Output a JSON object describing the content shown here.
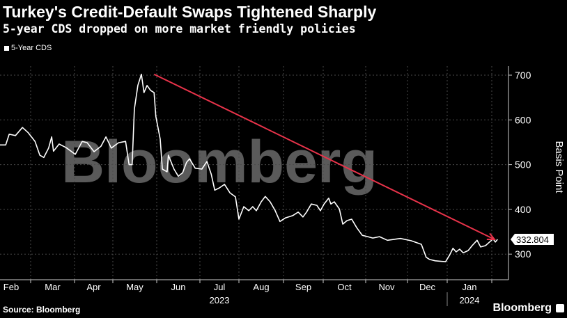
{
  "header": {
    "title": "Turkey's Credit-Default Swaps Tightened Sharply",
    "subtitle": "5-year CDS dropped on more market friendly policies"
  },
  "footer": {
    "source": "Source: Bloomberg",
    "brand": "Bloomberg"
  },
  "watermark": "Bloomberg",
  "colors": {
    "line": "#ffffff",
    "arrow": "#e8334a",
    "grid": "#555555",
    "watermark": "#5a5a5a"
  },
  "chart_data": {
    "type": "line",
    "title": "Turkey's Credit-Default Swaps Tightened Sharply",
    "subtitle": "5-year CDS dropped on more market friendly policies",
    "ylabel": "Basis Point",
    "xlabel": "",
    "ylim": [
      240,
      740
    ],
    "yticks": [
      300,
      400,
      500,
      600,
      700
    ],
    "x_unit": "months since 2023-01-01",
    "xticks": [
      {
        "label": "Feb",
        "m": 1
      },
      {
        "label": "Mar",
        "m": 2
      },
      {
        "label": "Apr",
        "m": 3
      },
      {
        "label": "May",
        "m": 4
      },
      {
        "label": "Jun",
        "m": 5
      },
      {
        "label": "Jul",
        "m": 6
      },
      {
        "label": "Aug",
        "m": 7
      },
      {
        "label": "Sep",
        "m": 8
      },
      {
        "label": "Oct",
        "m": 9
      },
      {
        "label": "Nov",
        "m": 10
      },
      {
        "label": "Dec",
        "m": 11
      },
      {
        "label": "Jan",
        "m": 12
      }
    ],
    "year_labels": [
      {
        "label": "2023",
        "m": 6.5
      },
      {
        "label": "2024",
        "m": 12.5
      }
    ],
    "legend": [
      "5-Year CDS"
    ],
    "legend_position": "top-left",
    "grid": true,
    "last_value_label": "332.804",
    "annotation": {
      "type": "arrow",
      "from": [
        4.94,
        702
      ],
      "to": [
        13.06,
        333
      ]
    },
    "series": [
      {
        "name": "5-Year CDS",
        "points": [
          [
            1.21,
            544
          ],
          [
            1.36,
            544
          ],
          [
            1.45,
            568
          ],
          [
            1.61,
            565
          ],
          [
            1.79,
            583
          ],
          [
            1.93,
            572
          ],
          [
            2.1,
            552
          ],
          [
            2.21,
            521
          ],
          [
            2.3,
            516
          ],
          [
            2.41,
            537
          ],
          [
            2.48,
            562
          ],
          [
            2.52,
            530
          ],
          [
            2.65,
            546
          ],
          [
            2.81,
            538
          ],
          [
            3.02,
            523
          ],
          [
            3.2,
            552
          ],
          [
            3.33,
            549
          ],
          [
            3.51,
            529
          ],
          [
            3.69,
            541
          ],
          [
            3.82,
            562
          ],
          [
            3.96,
            537
          ],
          [
            4.13,
            549
          ],
          [
            4.29,
            552
          ],
          [
            4.37,
            500
          ],
          [
            4.44,
            500
          ],
          [
            4.49,
            624
          ],
          [
            4.57,
            677
          ],
          [
            4.65,
            702
          ],
          [
            4.71,
            661
          ],
          [
            4.78,
            677
          ],
          [
            4.86,
            666
          ],
          [
            4.94,
            661
          ],
          [
            4.98,
            608
          ],
          [
            5.08,
            557
          ],
          [
            5.13,
            490
          ],
          [
            5.24,
            484
          ],
          [
            5.27,
            521
          ],
          [
            5.4,
            490
          ],
          [
            5.5,
            474
          ],
          [
            5.6,
            482
          ],
          [
            5.69,
            505
          ],
          [
            5.76,
            513
          ],
          [
            5.89,
            492
          ],
          [
            6.05,
            490
          ],
          [
            6.18,
            507
          ],
          [
            6.29,
            479
          ],
          [
            6.38,
            443
          ],
          [
            6.5,
            448
          ],
          [
            6.63,
            456
          ],
          [
            6.77,
            437
          ],
          [
            6.91,
            428
          ],
          [
            7.0,
            378
          ],
          [
            7.11,
            406
          ],
          [
            7.22,
            397
          ],
          [
            7.31,
            406
          ],
          [
            7.39,
            397
          ],
          [
            7.5,
            417
          ],
          [
            7.59,
            429
          ],
          [
            7.7,
            417
          ],
          [
            7.81,
            398
          ],
          [
            7.92,
            373
          ],
          [
            8.05,
            381
          ],
          [
            8.23,
            386
          ],
          [
            8.37,
            394
          ],
          [
            8.49,
            383
          ],
          [
            8.58,
            394
          ],
          [
            8.7,
            412
          ],
          [
            8.84,
            409
          ],
          [
            8.93,
            397
          ],
          [
            9.02,
            412
          ],
          [
            9.13,
            425
          ],
          [
            9.18,
            412
          ],
          [
            9.26,
            417
          ],
          [
            9.38,
            401
          ],
          [
            9.46,
            367
          ],
          [
            9.56,
            375
          ],
          [
            9.67,
            378
          ],
          [
            9.79,
            359
          ],
          [
            9.92,
            342
          ],
          [
            10.05,
            339
          ],
          [
            10.17,
            336
          ],
          [
            10.33,
            339
          ],
          [
            10.52,
            331
          ],
          [
            10.83,
            335
          ],
          [
            11.09,
            330
          ],
          [
            11.35,
            322
          ],
          [
            11.47,
            293
          ],
          [
            11.56,
            288
          ],
          [
            11.7,
            285
          ],
          [
            11.96,
            283
          ],
          [
            12.05,
            297
          ],
          [
            12.13,
            313
          ],
          [
            12.2,
            305
          ],
          [
            12.28,
            311
          ],
          [
            12.36,
            303
          ],
          [
            12.47,
            308
          ],
          [
            12.56,
            319
          ],
          [
            12.67,
            331
          ],
          [
            12.75,
            316
          ],
          [
            12.86,
            319
          ],
          [
            12.95,
            327
          ],
          [
            13.03,
            334
          ],
          [
            13.08,
            327
          ],
          [
            13.13,
            333
          ]
        ]
      }
    ]
  }
}
